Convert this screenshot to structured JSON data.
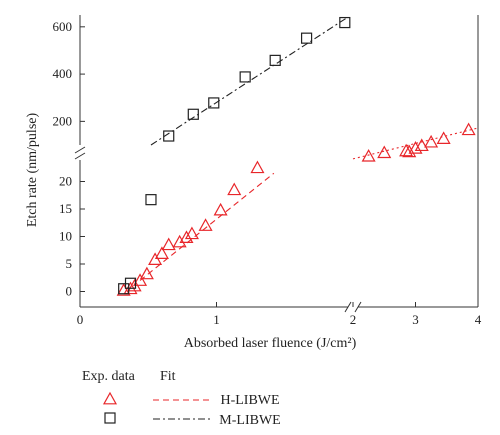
{
  "chart_data": {
    "type": "scatter",
    "xlabel": "Absorbed laser fluence (J/cm²)",
    "ylabel": "Etch rate (nm/pulse)",
    "x_tick_labels": [
      "0",
      "1",
      "2",
      "3",
      "4"
    ],
    "y_tick_labels_lower": [
      "0",
      "5",
      "10",
      "15",
      "20"
    ],
    "y_tick_labels_upper": [
      "200",
      "400",
      "600"
    ],
    "legend": {
      "exp_header": "Exp. data",
      "fit_header": "Fit",
      "entries": [
        "H-LIBWE",
        "M-LIBWE"
      ]
    },
    "colors": {
      "h": "#e8262a",
      "m": "#222222",
      "axis": "#333333"
    },
    "panels": {
      "x_left_range": [
        0,
        2
      ],
      "x_right_range": [
        2,
        4
      ],
      "y_lower_range": [
        -1,
        23
      ],
      "y_upper_range": [
        100,
        650
      ]
    },
    "series": [
      {
        "name": "H-LIBWE",
        "marker": "triangle",
        "points": [
          [
            0.32,
            0.2
          ],
          [
            0.37,
            0.5
          ],
          [
            0.4,
            1.0
          ],
          [
            0.44,
            2.0
          ],
          [
            0.49,
            3.2
          ],
          [
            0.55,
            5.8
          ],
          [
            0.6,
            6.9
          ],
          [
            0.65,
            8.5
          ],
          [
            0.73,
            9.0
          ],
          [
            0.78,
            9.8
          ],
          [
            0.82,
            10.5
          ],
          [
            0.92,
            12.0
          ],
          [
            1.03,
            14.8
          ],
          [
            1.13,
            18.5
          ],
          [
            1.3,
            22.5
          ],
          [
            2.25,
            29.0
          ],
          [
            2.5,
            31.0
          ],
          [
            2.85,
            32.0
          ],
          [
            2.9,
            31.5
          ],
          [
            3.0,
            33.5
          ],
          [
            3.1,
            35.0
          ],
          [
            3.25,
            37.0
          ],
          [
            3.45,
            39.0
          ],
          [
            3.85,
            44.0
          ]
        ]
      },
      {
        "name": "M-LIBWE",
        "marker": "square",
        "points_lower": [
          [
            0.32,
            0.5
          ],
          [
            0.37,
            1.5
          ],
          [
            0.52,
            16.7
          ]
        ],
        "points_upper": [
          [
            0.65,
            138
          ],
          [
            0.83,
            230
          ],
          [
            0.98,
            278
          ],
          [
            1.21,
            388
          ],
          [
            1.43,
            458
          ],
          [
            1.66,
            552
          ],
          [
            1.94,
            618
          ]
        ]
      }
    ],
    "fits": [
      {
        "name": "H-LIBWE",
        "segments_left": [
          [
            [
              0.44,
              2.0
            ],
            [
              1.42,
              21.5
            ]
          ]
        ],
        "segments_right": [
          [
            [
              2.0,
              27.5
            ],
            [
              4.0,
              45.0
            ]
          ]
        ],
        "style": "dashed"
      },
      {
        "name": "M-LIBWE",
        "segments_upper": [
          [
            [
              0.52,
              100
            ],
            [
              1.96,
              640
            ]
          ]
        ],
        "style": "dashdot"
      }
    ]
  }
}
